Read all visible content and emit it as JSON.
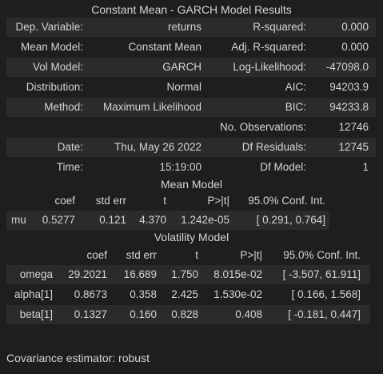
{
  "summary": {
    "title": "Constant Mean - GARCH Model Results",
    "left": [
      {
        "label": "Dep. Variable:",
        "value": "returns"
      },
      {
        "label": "Mean Model:",
        "value": "Constant Mean"
      },
      {
        "label": "Vol Model:",
        "value": "GARCH"
      },
      {
        "label": "Distribution:",
        "value": "Normal"
      },
      {
        "label": "Method:",
        "value": "Maximum Likelihood"
      },
      {
        "label": "",
        "value": ""
      },
      {
        "label": "Date:",
        "value": "Thu, May 26 2022"
      },
      {
        "label": "Time:",
        "value": "15:19:00"
      }
    ],
    "right": [
      {
        "label": "R-squared:",
        "value": "0.000"
      },
      {
        "label": "Adj. R-squared:",
        "value": "0.000"
      },
      {
        "label": "Log-Likelihood:",
        "value": "-47098.0"
      },
      {
        "label": "AIC:",
        "value": "94203.9"
      },
      {
        "label": "BIC:",
        "value": "94233.8"
      },
      {
        "label": "No. Observations:",
        "value": "12746"
      },
      {
        "label": "Df Residuals:",
        "value": "12745"
      },
      {
        "label": "Df Model:",
        "value": "1"
      }
    ]
  },
  "mean_model": {
    "caption": "Mean Model",
    "headers": [
      "coef",
      "std err",
      "t",
      "P>|t|",
      "95.0% Conf. Int."
    ],
    "rows": [
      [
        "mu",
        "0.5277",
        "0.121",
        "4.370",
        "1.242e-05",
        "[ 0.291, 0.764]"
      ]
    ]
  },
  "volatility_model": {
    "caption": "Volatility Model",
    "headers": [
      "coef",
      "std err",
      "t",
      "P>|t|",
      "95.0% Conf. Int."
    ],
    "rows": [
      [
        "omega",
        "29.2021",
        "16.689",
        "1.750",
        "8.015e-02",
        "[ -3.507, 61.911]"
      ],
      [
        "alpha[1]",
        "0.8673",
        "0.358",
        "2.425",
        "1.530e-02",
        "[ 0.166, 1.568]"
      ],
      [
        "beta[1]",
        "0.1327",
        "0.160",
        "0.828",
        "0.408",
        "[ -0.181, 0.447]"
      ]
    ]
  },
  "footer_note": "Covariance estimator: robust"
}
